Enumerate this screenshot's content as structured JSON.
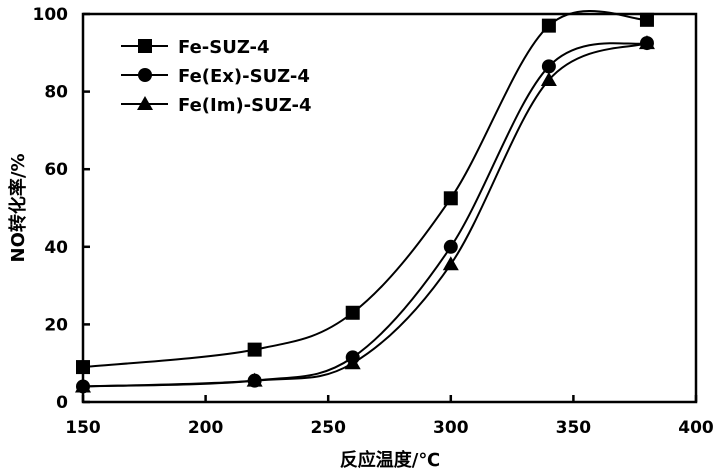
{
  "chart_data": {
    "type": "line",
    "title": "",
    "xlabel": "反应温度/℃",
    "ylabel": "NO转化率/%",
    "xlim": [
      150,
      400
    ],
    "ylim": [
      0,
      100
    ],
    "x_ticks": [
      "150",
      "200",
      "250",
      "300",
      "350",
      "400"
    ],
    "y_ticks": [
      "0",
      "20",
      "40",
      "60",
      "80",
      "100"
    ],
    "grid": false,
    "legend_position": "top-left",
    "x": [
      150,
      220,
      260,
      300,
      340,
      380
    ],
    "series": [
      {
        "name": "Fe-SUZ-4",
        "marker": "square",
        "values": [
          9,
          13.5,
          23,
          52.5,
          97,
          98.5
        ]
      },
      {
        "name": "Fe(Ex)-SUZ-4",
        "marker": "circle",
        "values": [
          4,
          5.5,
          11.5,
          40,
          86.5,
          92.5
        ]
      },
      {
        "name": "Fe(Im)-SUZ-4",
        "marker": "triangle",
        "values": [
          4,
          5.5,
          10,
          35.5,
          83,
          92.5
        ]
      }
    ]
  }
}
